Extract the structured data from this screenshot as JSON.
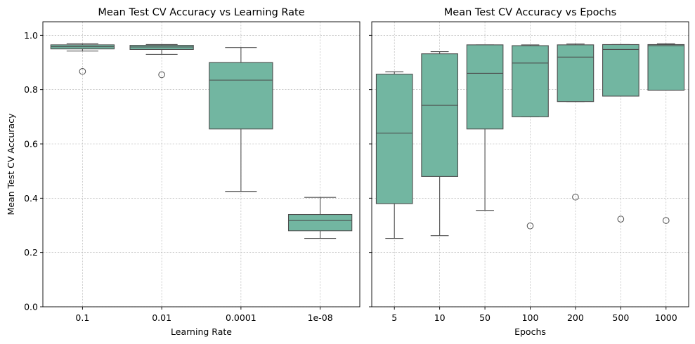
{
  "style": {
    "box_fill": "#72b6a1",
    "box_stroke": "#4d4d4d",
    "grid_color": "#b0b0b0"
  },
  "chart_data": [
    {
      "type": "box",
      "title": "Mean Test CV Accuracy vs Learning Rate",
      "xlabel": "Learning Rate",
      "ylabel": "Mean Test CV Accuracy",
      "ylim": [
        0.0,
        1.05
      ],
      "yticks": [
        "0.0",
        "0.2",
        "0.4",
        "0.6",
        "0.8",
        "1.0"
      ],
      "grid": true,
      "categories": [
        "0.1",
        "0.01",
        "0.0001",
        "1e-08"
      ],
      "boxes": [
        {
          "whisker_low": 0.942,
          "q1": 0.95,
          "median": 0.958,
          "q3": 0.965,
          "whisker_high": 0.969,
          "outliers": [
            0.867
          ]
        },
        {
          "whisker_low": 0.93,
          "q1": 0.948,
          "median": 0.957,
          "q3": 0.963,
          "whisker_high": 0.966,
          "outliers": [
            0.855
          ]
        },
        {
          "whisker_low": 0.425,
          "q1": 0.655,
          "median": 0.835,
          "q3": 0.9,
          "whisker_high": 0.955,
          "outliers": []
        },
        {
          "whisker_low": 0.252,
          "q1": 0.28,
          "median": 0.318,
          "q3": 0.34,
          "whisker_high": 0.403,
          "outliers": []
        }
      ]
    },
    {
      "type": "box",
      "title": "Mean Test CV Accuracy vs Epochs",
      "xlabel": "Epochs",
      "ylabel": "",
      "ylim": [
        0.0,
        1.05
      ],
      "yticks": [
        "0.0",
        "0.2",
        "0.4",
        "0.6",
        "0.8",
        "1.0"
      ],
      "grid": true,
      "categories": [
        "5",
        "10",
        "50",
        "100",
        "200",
        "500",
        "1000"
      ],
      "boxes": [
        {
          "whisker_low": 0.252,
          "q1": 0.38,
          "median": 0.64,
          "q3": 0.857,
          "whisker_high": 0.866,
          "outliers": []
        },
        {
          "whisker_low": 0.262,
          "q1": 0.48,
          "median": 0.742,
          "q3": 0.932,
          "whisker_high": 0.94,
          "outliers": []
        },
        {
          "whisker_low": 0.355,
          "q1": 0.655,
          "median": 0.86,
          "q3": 0.965,
          "whisker_high": 0.965,
          "outliers": []
        },
        {
          "whisker_low": 0.7,
          "q1": 0.7,
          "median": 0.898,
          "q3": 0.962,
          "whisker_high": 0.965,
          "outliers": [
            0.298
          ]
        },
        {
          "whisker_low": 0.756,
          "q1": 0.756,
          "median": 0.92,
          "q3": 0.965,
          "whisker_high": 0.968,
          "outliers": [
            0.404
          ]
        },
        {
          "whisker_low": 0.776,
          "q1": 0.776,
          "median": 0.948,
          "q3": 0.966,
          "whisker_high": 0.966,
          "outliers": [
            0.323
          ]
        },
        {
          "whisker_low": 0.798,
          "q1": 0.798,
          "median": 0.962,
          "q3": 0.966,
          "whisker_high": 0.969,
          "outliers": [
            0.318
          ]
        }
      ]
    }
  ]
}
